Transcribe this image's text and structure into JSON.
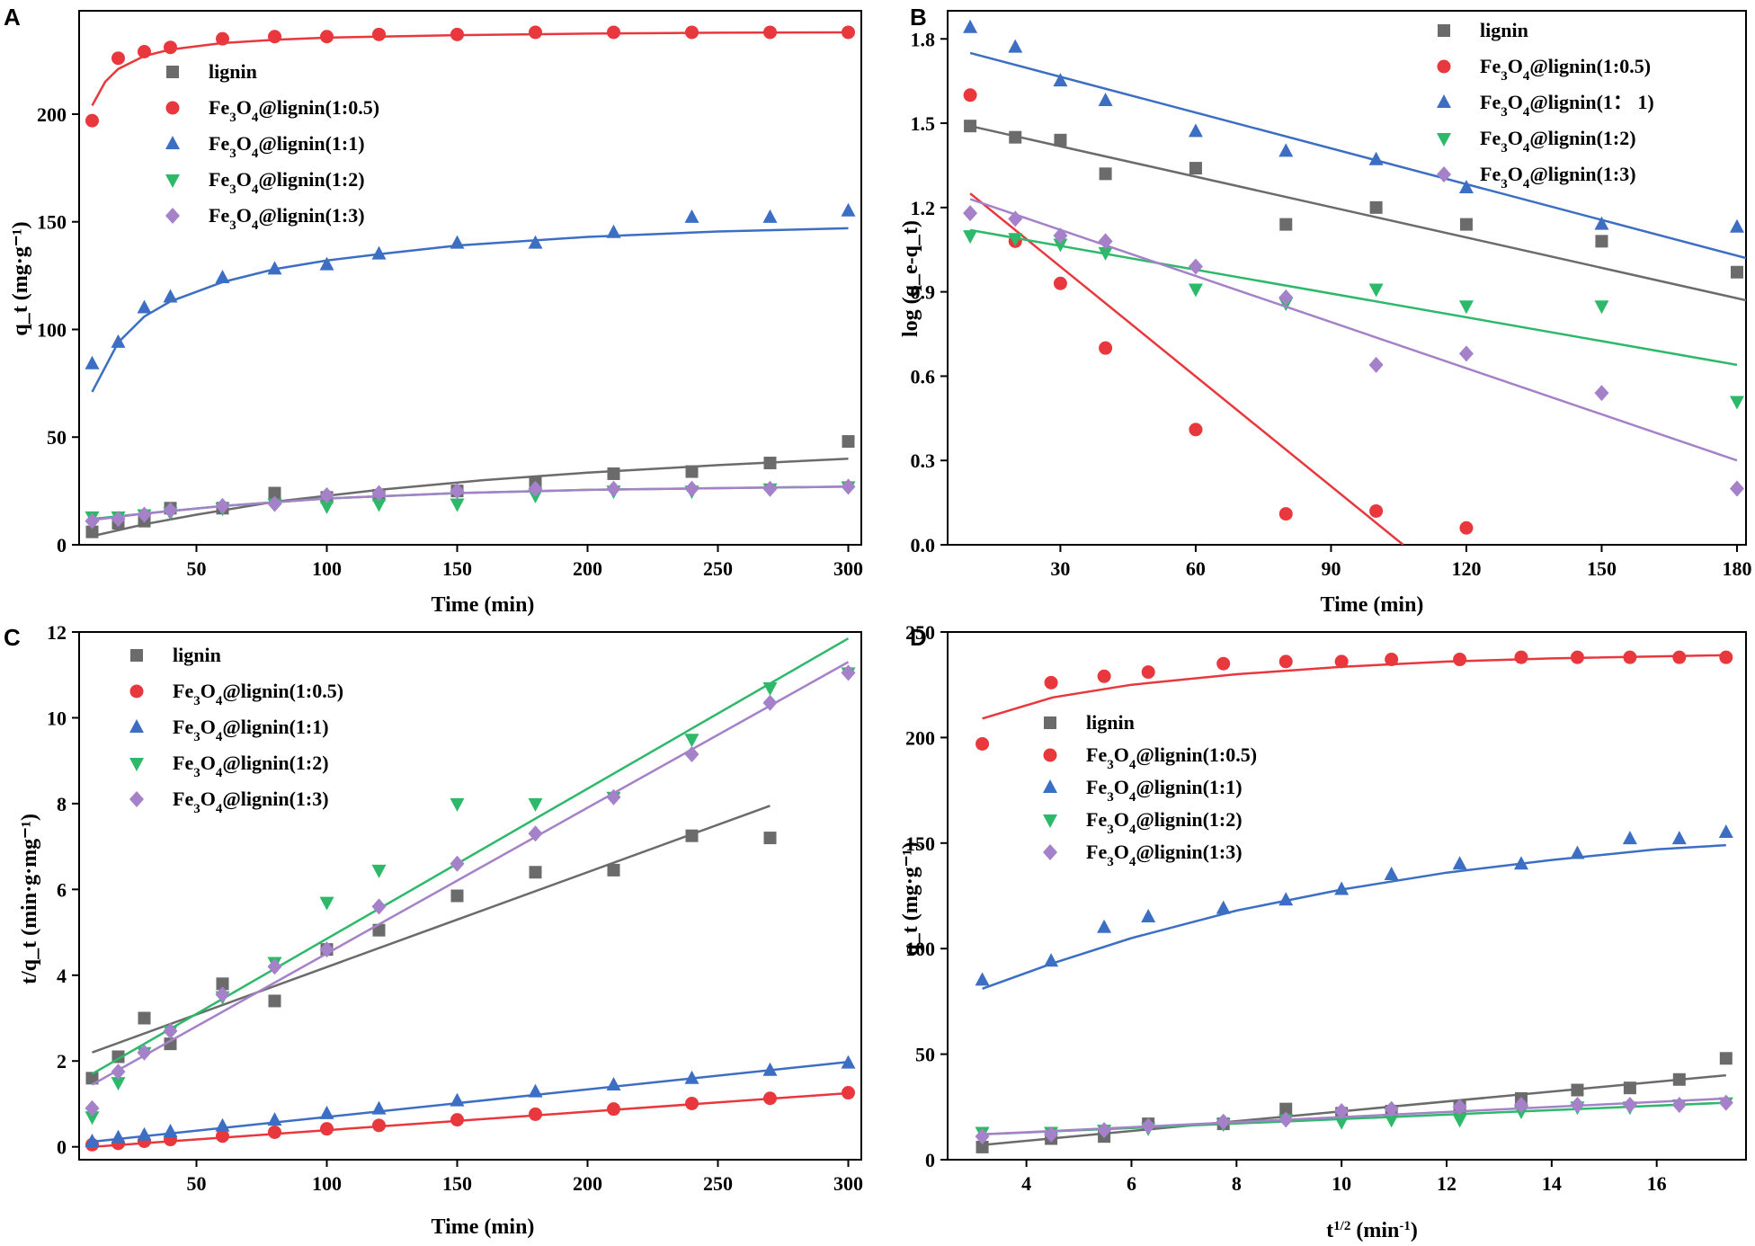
{
  "colors": {
    "lignin": "#6b6b6b",
    "r05": "#e8383d",
    "r1": "#3c6fc4",
    "r2": "#2db86a",
    "r3": "#a481c8"
  },
  "chart_data": [
    {
      "panel": "A",
      "type": "scatter",
      "xlabel": "Time (min)",
      "ylabel": "q_t (mg·g⁻¹)",
      "xlim": [
        5,
        305
      ],
      "ylim": [
        0,
        248
      ],
      "xticks": [
        "50",
        "100",
        "150",
        "200",
        "250",
        "300"
      ],
      "xtick_values": [
        50,
        100,
        150,
        200,
        250,
        300
      ],
      "yticks": [
        "0",
        "50",
        "100",
        "150",
        "200"
      ],
      "ytick_values": [
        0,
        50,
        100,
        150,
        200
      ],
      "legend": [
        "lignin",
        "Fe3O4@lignin(1:0.5)",
        "Fe3O4@lignin(1:1)",
        "Fe3O4@lignin(1:2)",
        "Fe3O4@lignin(1:3)"
      ],
      "x": [
        10,
        20,
        30,
        40,
        60,
        80,
        100,
        120,
        150,
        180,
        210,
        240,
        270,
        300
      ],
      "series": [
        {
          "name": "lignin",
          "marker": "square",
          "values": [
            6,
            10,
            11,
            17,
            17,
            24,
            22,
            23,
            25,
            29,
            33,
            34,
            38,
            48
          ],
          "fit_x": [
            10,
            30,
            50,
            80,
            120,
            160,
            200,
            250,
            300
          ],
          "fit_y": [
            4,
            9.5,
            14,
            20,
            25.5,
            30,
            33.5,
            37,
            40
          ]
        },
        {
          "name": "Fe3O4@lignin(1:0.5)",
          "marker": "circle",
          "values": [
            197,
            226,
            229,
            231,
            235,
            236,
            236,
            237,
            237,
            238,
            238,
            238,
            238,
            238
          ],
          "fit_x": [
            10,
            15,
            20,
            30,
            40,
            60,
            80,
            100,
            150,
            200,
            250,
            300
          ],
          "fit_y": [
            204,
            215,
            221,
            227,
            230,
            233,
            234.5,
            235.5,
            236.7,
            237.4,
            237.8,
            238
          ]
        },
        {
          "name": "Fe3O4@lignin(1:1)",
          "marker": "triangle-up",
          "values": [
            84,
            94,
            110,
            115,
            124,
            128,
            130,
            135,
            140,
            140,
            145,
            152,
            152,
            155
          ],
          "fit_x": [
            10,
            20,
            30,
            40,
            60,
            80,
            100,
            120,
            150,
            200,
            250,
            300
          ],
          "fit_y": [
            71,
            94,
            106,
            113,
            122,
            128,
            132,
            135,
            139,
            143,
            145.5,
            147
          ]
        },
        {
          "name": "Fe3O4@lignin(1:2)",
          "marker": "triangle-down",
          "values": [
            13,
            13,
            14,
            15,
            17,
            19,
            18,
            19,
            19,
            23,
            25,
            25,
            26,
            27
          ],
          "fit_x": [
            10,
            30,
            60,
            100,
            150,
            200,
            250,
            300
          ],
          "fit_y": [
            12,
            14.5,
            18,
            21.5,
            24,
            25.5,
            26.3,
            27
          ]
        },
        {
          "name": "Fe3O4@lignin(1:3)",
          "marker": "diamond",
          "values": [
            11,
            12,
            14,
            16,
            18,
            19,
            23,
            24,
            25,
            26,
            26,
            26,
            26,
            27
          ],
          "fit_x": [
            10,
            30,
            60,
            100,
            150,
            200,
            250,
            300
          ],
          "fit_y": [
            11.5,
            14.5,
            18,
            21.5,
            24,
            25.5,
            26.3,
            27
          ]
        }
      ]
    },
    {
      "panel": "B",
      "type": "scatter",
      "xlabel": "Time (min)",
      "ylabel": "log (q_e-q_t)",
      "xlim": [
        5,
        182
      ],
      "ylim": [
        0,
        1.9
      ],
      "xticks": [
        "30",
        "60",
        "90",
        "120",
        "150",
        "180"
      ],
      "xtick_values": [
        30,
        60,
        90,
        120,
        150,
        180
      ],
      "yticks": [
        "0.0",
        "0.3",
        "0.6",
        "0.9",
        "1.2",
        "1.5",
        "1.8"
      ],
      "ytick_values": [
        0.0,
        0.3,
        0.6,
        0.9,
        1.2,
        1.5,
        1.8
      ],
      "legend": [
        "lignin",
        "Fe3O4@lignin(1:0.5)",
        "Fe3O4@lignin(1： 1)",
        "Fe3O4@lignin(1:2)",
        "Fe3O4@lignin(1:3)"
      ],
      "x": [
        10,
        20,
        30,
        40,
        60,
        80,
        100,
        120,
        150,
        180
      ],
      "series": [
        {
          "name": "lignin",
          "marker": "square",
          "values": [
            1.49,
            1.45,
            1.44,
            1.32,
            1.34,
            1.14,
            1.2,
            1.14,
            1.08,
            0.97
          ],
          "fit_x": [
            10,
            182
          ],
          "fit_y": [
            1.49,
            0.87
          ]
        },
        {
          "name": "Fe3O4@lignin(1:0.5)",
          "marker": "circle",
          "values": [
            1.6,
            1.08,
            0.93,
            0.7,
            0.41,
            0.11,
            0.12,
            0.06,
            null,
            null
          ],
          "fit_x": [
            10,
            106
          ],
          "fit_y": [
            1.25,
            0.0
          ]
        },
        {
          "name": "Fe3O4@lignin(1:1)",
          "marker": "triangle-up",
          "values": [
            1.84,
            1.77,
            1.65,
            1.58,
            1.47,
            1.4,
            1.37,
            1.27,
            1.14,
            1.13
          ],
          "fit_x": [
            10,
            182
          ],
          "fit_y": [
            1.75,
            1.02
          ]
        },
        {
          "name": "Fe3O4@lignin(1:2)",
          "marker": "triangle-down",
          "values": [
            1.1,
            1.09,
            1.07,
            1.04,
            0.91,
            0.86,
            0.91,
            0.85,
            0.85,
            0.51
          ],
          "fit_x": [
            10,
            180
          ],
          "fit_y": [
            1.12,
            0.64
          ]
        },
        {
          "name": "Fe3O4@lignin(1:3)",
          "marker": "diamond",
          "values": [
            1.18,
            1.16,
            1.1,
            1.08,
            0.99,
            0.88,
            0.64,
            0.68,
            0.54,
            0.2
          ],
          "fit_x": [
            10,
            180
          ],
          "fit_y": [
            1.23,
            0.3
          ]
        }
      ]
    },
    {
      "panel": "C",
      "type": "scatter",
      "xlabel": "Time (min)",
      "ylabel": "t/q_t (min·g·mg⁻¹)",
      "xlim": [
        5,
        305
      ],
      "ylim": [
        -0.3,
        12
      ],
      "xticks": [
        "50",
        "100",
        "150",
        "200",
        "250",
        "300"
      ],
      "xtick_values": [
        50,
        100,
        150,
        200,
        250,
        300
      ],
      "yticks": [
        "0",
        "2",
        "4",
        "6",
        "8",
        "10",
        "12"
      ],
      "ytick_values": [
        0,
        2,
        4,
        6,
        8,
        10,
        12
      ],
      "legend": [
        "lignin",
        "Fe3O4@lignin(1:0.5)",
        "Fe3O4@lignin(1:1)",
        "Fe3O4@lignin(1:2)",
        "Fe3O4@lignin(1:3)"
      ],
      "x": [
        10,
        20,
        30,
        40,
        60,
        80,
        100,
        120,
        150,
        180,
        210,
        240,
        270,
        300
      ],
      "series": [
        {
          "name": "lignin",
          "marker": "square",
          "values": [
            1.6,
            2.1,
            3.0,
            2.4,
            3.8,
            3.4,
            4.6,
            5.05,
            5.85,
            6.4,
            6.45,
            7.25,
            7.2,
            null
          ],
          "fit_x": [
            10,
            270
          ],
          "fit_y": [
            2.2,
            7.95
          ]
        },
        {
          "name": "Fe3O4@lignin(1:0.5)",
          "marker": "circle",
          "values": [
            0.05,
            0.08,
            0.13,
            0.17,
            0.25,
            0.34,
            0.42,
            0.5,
            0.63,
            0.76,
            0.88,
            1.01,
            1.13,
            1.26
          ],
          "fit_x": [
            10,
            300
          ],
          "fit_y": [
            0.0,
            1.25
          ]
        },
        {
          "name": "Fe3O4@lignin(1:1)",
          "marker": "triangle-up",
          "values": [
            0.12,
            0.21,
            0.27,
            0.35,
            0.48,
            0.62,
            0.77,
            0.88,
            1.07,
            1.28,
            1.44,
            1.59,
            1.78,
            1.95
          ],
          "fit_x": [
            10,
            300
          ],
          "fit_y": [
            0.12,
            1.98
          ]
        },
        {
          "name": "Fe3O4@lignin(1:2)",
          "marker": "triangle-down",
          "values": [
            0.7,
            1.5,
            2.2,
            2.7,
            3.5,
            4.3,
            5.7,
            6.45,
            8.0,
            8.0,
            8.15,
            9.5,
            10.7,
            11.05
          ],
          "fit_x": [
            10,
            300
          ],
          "fit_y": [
            1.7,
            11.85
          ]
        },
        {
          "name": "Fe3O4@lignin(1:3)",
          "marker": "diamond",
          "values": [
            0.9,
            1.75,
            2.2,
            2.7,
            3.55,
            4.2,
            4.6,
            5.6,
            6.6,
            7.3,
            8.15,
            9.15,
            10.35,
            11.05
          ],
          "fit_x": [
            10,
            300
          ],
          "fit_y": [
            1.45,
            11.3
          ]
        }
      ]
    },
    {
      "panel": "D",
      "type": "scatter",
      "xlabel": "t^1/2 (min^-1)",
      "ylabel": "q_t (mg·g⁻¹)",
      "xlim": [
        2.5,
        17.7
      ],
      "ylim": [
        0,
        250
      ],
      "xticks": [
        "4",
        "6",
        "8",
        "10",
        "12",
        "14",
        "16"
      ],
      "xtick_values": [
        4,
        6,
        8,
        10,
        12,
        14,
        16
      ],
      "yticks": [
        "0",
        "50",
        "100",
        "150",
        "200",
        "250"
      ],
      "ytick_values": [
        0,
        50,
        100,
        150,
        200,
        250
      ],
      "legend": [
        "lignin",
        "Fe3O4@lignin(1:0.5)",
        "Fe3O4@lignin(1:1)",
        "Fe3O4@lignin(1:2)",
        "Fe3O4@lignin(1:3)"
      ],
      "x": [
        3.16,
        4.47,
        5.48,
        6.32,
        7.75,
        8.94,
        10.0,
        10.95,
        12.25,
        13.42,
        14.49,
        15.49,
        16.43,
        17.32
      ],
      "series": [
        {
          "name": "lignin",
          "marker": "square",
          "values": [
            6,
            10,
            11,
            17,
            17,
            24,
            22,
            23,
            25,
            29,
            33,
            34,
            38,
            48
          ],
          "fit_x": [
            3.16,
            17.32
          ],
          "fit_y": [
            7,
            40
          ]
        },
        {
          "name": "Fe3O4@lignin(1:0.5)",
          "marker": "circle",
          "values": [
            197,
            226,
            229,
            231,
            235,
            236,
            236,
            237,
            237,
            238,
            238,
            238,
            238,
            238
          ],
          "fit_x": [
            3.16,
            4.5,
            6,
            8,
            10,
            12,
            14,
            17.32
          ],
          "fit_y": [
            209,
            219,
            225,
            230,
            233.5,
            236,
            237.5,
            239
          ]
        },
        {
          "name": "Fe3O4@lignin(1:1)",
          "marker": "triangle-up",
          "values": [
            85,
            94,
            110,
            115,
            119,
            123,
            128,
            135,
            140,
            140,
            145,
            152,
            152,
            155
          ],
          "fit_x": [
            3.16,
            4.5,
            6,
            8,
            10,
            12,
            14,
            16,
            17.32
          ],
          "fit_y": [
            81,
            93,
            105,
            118,
            128,
            136,
            142,
            147,
            149
          ]
        },
        {
          "name": "Fe3O4@lignin(1:2)",
          "marker": "triangle-down",
          "values": [
            13,
            13,
            14,
            15,
            17,
            19,
            18,
            19,
            19,
            23,
            25,
            25,
            26,
            27
          ],
          "fit_x": [
            3.16,
            17.32
          ],
          "fit_y": [
            12,
            27
          ]
        },
        {
          "name": "Fe3O4@lignin(1:3)",
          "marker": "diamond",
          "values": [
            11,
            12,
            14,
            16,
            18,
            19,
            23,
            24,
            25,
            26,
            26,
            26,
            26,
            27
          ],
          "fit_x": [
            3.16,
            17.32
          ],
          "fit_y": [
            12,
            29
          ]
        }
      ]
    }
  ]
}
